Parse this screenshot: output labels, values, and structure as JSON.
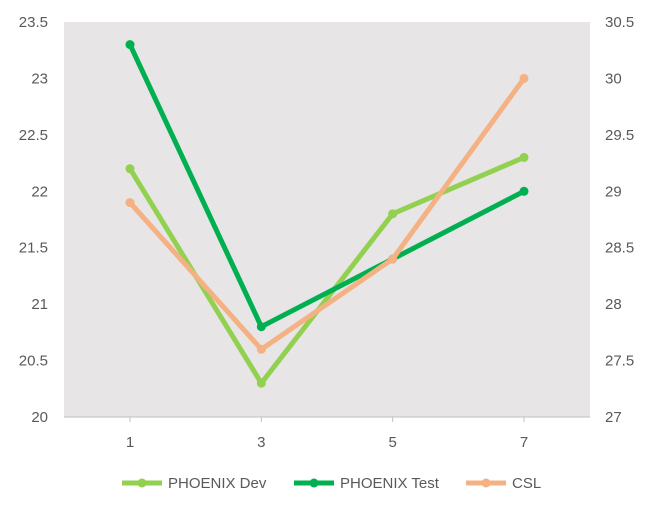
{
  "chart_data": {
    "type": "line",
    "x": [
      1,
      3,
      5,
      7
    ],
    "xticks": [
      "1",
      "3",
      "5",
      "7"
    ],
    "y_left": {
      "ylim": [
        20,
        23.5
      ],
      "ticks": [
        "20",
        "20.5",
        "21",
        "21.5",
        "22",
        "22.5",
        "23",
        "23.5"
      ]
    },
    "y_right": {
      "ylim": [
        27,
        30.5
      ],
      "ticks": [
        "27",
        "27.5",
        "28",
        "28.5",
        "29",
        "29.5",
        "30",
        "30.5"
      ]
    },
    "plot_background": "#e7e5e5",
    "grid": false,
    "legend_position": "bottom",
    "series": [
      {
        "name": "PHOENIX Dev",
        "axis": "left",
        "color": "#92d050",
        "values": [
          22.2,
          20.3,
          21.8,
          22.3
        ]
      },
      {
        "name": "PHOENIX Test",
        "axis": "left",
        "color": "#00b050",
        "values": [
          23.3,
          20.8,
          21.4,
          22.0
        ]
      },
      {
        "name": "CSL",
        "axis": "right",
        "color": "#f4b183",
        "values": [
          28.9,
          27.6,
          28.4,
          30.0
        ]
      }
    ]
  }
}
